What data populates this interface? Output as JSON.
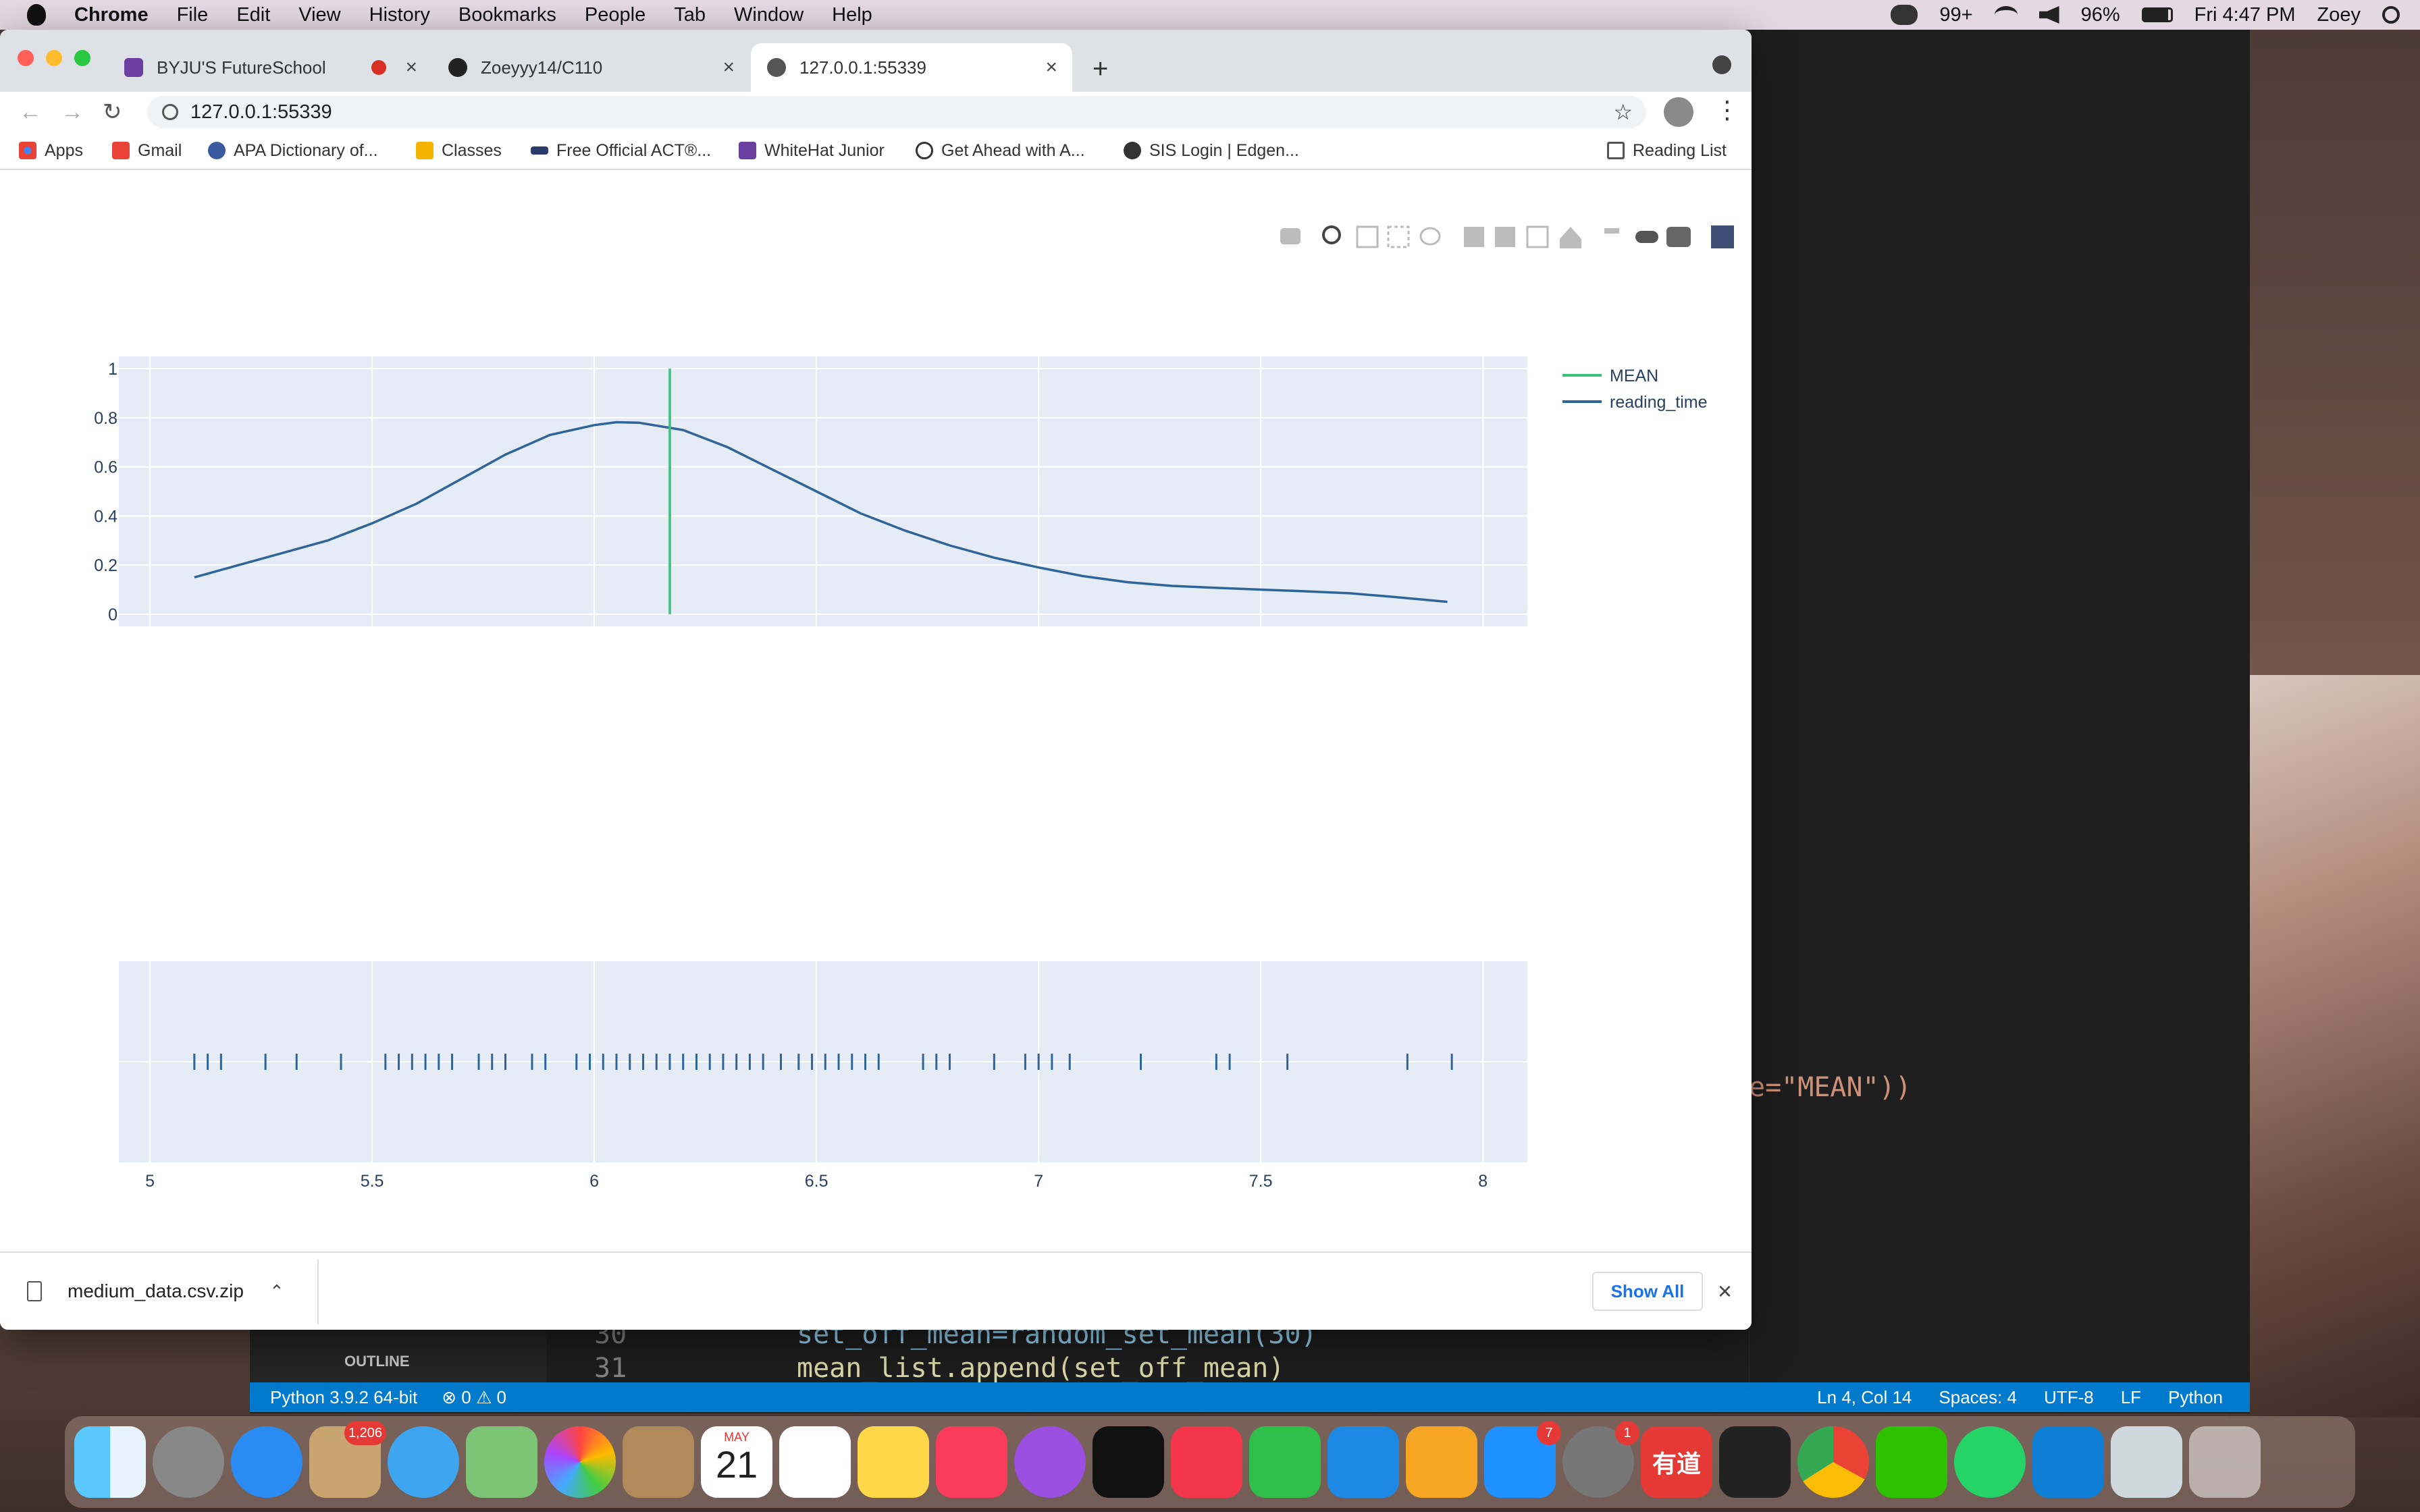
{
  "menubar": {
    "app": "Chrome",
    "items": [
      "File",
      "Edit",
      "View",
      "History",
      "Bookmarks",
      "People",
      "Tab",
      "Window",
      "Help"
    ],
    "notif_count": "99+",
    "battery": "96%",
    "clock": "Fri 4:47 PM",
    "user": "Zoey"
  },
  "tabs": [
    {
      "title": "BYJU'S FutureSchool",
      "color": "#6a3fa0"
    },
    {
      "title": "Zoeyyy14/C110",
      "color": "#222222"
    },
    {
      "title": "127.0.0.1:55339",
      "color": "#555555"
    }
  ],
  "address": "127.0.0.1:55339",
  "bookmarks": [
    {
      "label": "Apps",
      "color": "#4285f4"
    },
    {
      "label": "Gmail",
      "color": "#ea4335"
    },
    {
      "label": "APA Dictionary of...",
      "color": "#3a5aa0"
    },
    {
      "label": "Classes",
      "color": "#f4b400"
    },
    {
      "label": "Free Official ACT®...",
      "color": "#2a3a6a"
    },
    {
      "label": "WhiteHat Junior",
      "color": "#6a3fa0"
    },
    {
      "label": "Get Ahead with A...",
      "color": "#333333"
    },
    {
      "label": "SIS Login | Edgen...",
      "color": "#333333"
    }
  ],
  "reading_list": "Reading List",
  "chart_data": {
    "type": "line",
    "title": "",
    "xlabel": "",
    "ylabel": "",
    "xlim": [
      4.93,
      8.1
    ],
    "ylim": [
      -0.05,
      1.05
    ],
    "x_ticks": [
      "5",
      "5.5",
      "6",
      "6.5",
      "7",
      "7.5",
      "8"
    ],
    "y_ticks": [
      "0",
      "0.2",
      "0.4",
      "0.6",
      "0.8",
      "1"
    ],
    "legend": [
      "MEAN",
      "reading_time"
    ],
    "legend_placement": "top-right",
    "series": [
      {
        "name": "reading_time",
        "color": "#2f6598",
        "x": [
          5.1,
          5.2,
          5.3,
          5.4,
          5.5,
          5.6,
          5.7,
          5.8,
          5.9,
          6.0,
          6.05,
          6.1,
          6.2,
          6.3,
          6.4,
          6.5,
          6.6,
          6.7,
          6.8,
          6.9,
          7.0,
          7.1,
          7.2,
          7.3,
          7.4,
          7.5,
          7.6,
          7.7,
          7.8,
          7.92
        ],
        "y": [
          0.15,
          0.2,
          0.25,
          0.3,
          0.37,
          0.45,
          0.55,
          0.65,
          0.73,
          0.77,
          0.782,
          0.78,
          0.75,
          0.68,
          0.59,
          0.5,
          0.41,
          0.34,
          0.28,
          0.23,
          0.19,
          0.155,
          0.13,
          0.115,
          0.107,
          0.1,
          0.093,
          0.085,
          0.07,
          0.05
        ]
      },
      {
        "name": "MEAN",
        "color": "#3cc178",
        "x": [
          6.17,
          6.17
        ],
        "y": [
          0,
          1
        ]
      }
    ],
    "rug": {
      "color": "#2f6598",
      "x": [
        5.1,
        5.13,
        5.16,
        5.26,
        5.33,
        5.43,
        5.53,
        5.56,
        5.59,
        5.62,
        5.65,
        5.68,
        5.74,
        5.77,
        5.8,
        5.86,
        5.89,
        5.96,
        5.99,
        6.02,
        6.05,
        6.08,
        6.11,
        6.14,
        6.17,
        6.2,
        6.23,
        6.26,
        6.29,
        6.32,
        6.35,
        6.38,
        6.42,
        6.46,
        6.49,
        6.52,
        6.55,
        6.58,
        6.61,
        6.64,
        6.74,
        6.77,
        6.8,
        6.9,
        6.97,
        7.0,
        7.03,
        7.07,
        7.23,
        7.4,
        7.43,
        7.56,
        7.83,
        7.93
      ]
    }
  },
  "download": {
    "file": "medium_data.csv.zip",
    "show_all": "Show All"
  },
  "vscode": {
    "code_mean": "e=\"MEAN\"))",
    "line30_no": "30",
    "line30": "set_off_mean=random_set_mean(30)",
    "line31_no": "31",
    "line31": "mean_list.append(set_off_mean)",
    "outline": "OUTLINE",
    "status_left": [
      "Python 3.9.2 64-bit",
      "⊗ 0 ⚠ 0"
    ],
    "status_right": [
      "Ln 4, Col 14",
      "Spaces: 4",
      "UTF-8",
      "LF",
      "Python"
    ]
  },
  "dock": {
    "mail_badge": "1,206",
    "calendar_month": "MAY",
    "calendar_day": "21",
    "appstore_badge": "7",
    "prefs_badge": "1",
    "youdao_label": "有道"
  }
}
